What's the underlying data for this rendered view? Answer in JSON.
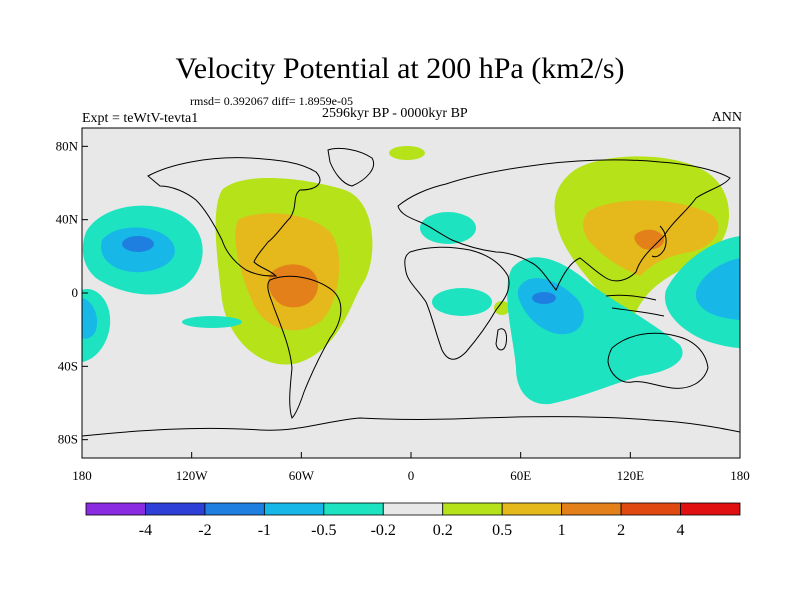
{
  "title": "Velocity Potential at 200 hPa (km2/s)",
  "stats": "rmsd= 0.392067 diff= 1.8959e-05",
  "experiment": "Expt = teWtV-tevta1",
  "period": "2596kyr BP - 0000kyr BP",
  "season": "ANN",
  "chart_data": {
    "type": "heatmap",
    "variable": "200 hPa velocity potential difference",
    "units": "km2/s",
    "x_ticks": [
      "180",
      "120W",
      "60W",
      "0",
      "60E",
      "120E",
      "180"
    ],
    "y_ticks": [
      "80N",
      "40N",
      "0",
      "40S",
      "80S"
    ],
    "x_range": [
      -180,
      180
    ],
    "y_range": [
      -90,
      90
    ],
    "colorbar": {
      "labels": [
        "-4",
        "-2",
        "-1",
        "-0.5",
        "-0.2",
        "0.2",
        "0.5",
        "1",
        "2",
        "4"
      ],
      "colors": [
        "#8a2be2",
        "#2e3fd8",
        "#1f7fe0",
        "#17b8e8",
        "#1de3c0",
        "#e8e8e8",
        "#b6e21a",
        "#e5b81c",
        "#e3801a",
        "#e04a10",
        "#e01010"
      ]
    },
    "features": [
      {
        "name": "positive anomaly over Americas / tropical Atlantic",
        "level": "1 to 2",
        "center_lon": -60,
        "center_lat": 5
      },
      {
        "name": "positive anomaly over East Asia / NW Pacific",
        "level": "1 to 2",
        "center_lon": 130,
        "center_lat": 35
      },
      {
        "name": "negative anomaly over central Pacific",
        "level": "-1 to -2",
        "center_lon": -150,
        "center_lat": 30
      },
      {
        "name": "negative anomaly over tropical Indian Ocean",
        "level": "-1 to -2",
        "center_lon": 80,
        "center_lat": 0
      },
      {
        "name": "negative anomaly over subtropical east Pacific",
        "level": "-0.5 to -1",
        "center_lon": 165,
        "center_lat": 5
      }
    ]
  }
}
